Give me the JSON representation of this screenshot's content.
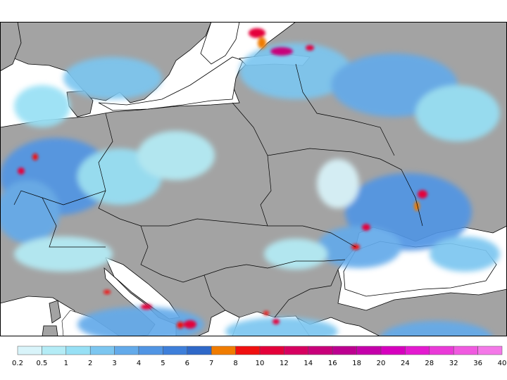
{
  "map": {
    "colors": {
      "land": "#a3a3a3",
      "sea": "#ffffff",
      "border": "#000000"
    }
  },
  "legend": {
    "swatches": [
      {
        "color": "#d9f4fa"
      },
      {
        "color": "#b4ecf6"
      },
      {
        "color": "#97e0f5"
      },
      {
        "color": "#7cc6f0"
      },
      {
        "color": "#63aaea"
      },
      {
        "color": "#5195e4"
      },
      {
        "color": "#3e7fda"
      },
      {
        "color": "#2f68c8"
      },
      {
        "color": "#f07c00"
      },
      {
        "color": "#f01010"
      },
      {
        "color": "#e4003a"
      },
      {
        "color": "#d60060"
      },
      {
        "color": "#c8007a"
      },
      {
        "color": "#bc0090"
      },
      {
        "color": "#c400aa"
      },
      {
        "color": "#d600be"
      },
      {
        "color": "#e41ad0"
      },
      {
        "color": "#ea3ad8"
      },
      {
        "color": "#f05ae0"
      },
      {
        "color": "#f478e8"
      }
    ],
    "labels": [
      "0.2",
      "0.5",
      "1",
      "2",
      "3",
      "4",
      "5",
      "6",
      "7",
      "8",
      "10",
      "12",
      "14",
      "16",
      "18",
      "20",
      "24",
      "28",
      "32",
      "36",
      "40"
    ]
  }
}
